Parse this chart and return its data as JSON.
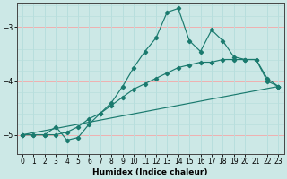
{
  "xlabel": "Humidex (Indice chaleur)",
  "bg_color": "#cce8e6",
  "grid_color_major": "#f0b0b0",
  "grid_color_minor": "#b8dedd",
  "line_color": "#1a7a6e",
  "xlim": [
    -0.5,
    23.5
  ],
  "ylim": [
    -5.35,
    -2.55
  ],
  "yticks": [
    -5,
    -4,
    -3
  ],
  "xticks": [
    0,
    1,
    2,
    3,
    4,
    5,
    6,
    7,
    8,
    9,
    10,
    11,
    12,
    13,
    14,
    15,
    16,
    17,
    18,
    19,
    20,
    21,
    22,
    23
  ],
  "line1_x": [
    0,
    1,
    2,
    3,
    4,
    5,
    6,
    7,
    8,
    9,
    10,
    11,
    12,
    13,
    14,
    15,
    16,
    17,
    18,
    19,
    20,
    21,
    22,
    23
  ],
  "line1_y": [
    -5.0,
    -5.0,
    -5.0,
    -4.85,
    -5.1,
    -5.05,
    -4.8,
    -4.6,
    -4.4,
    -4.1,
    -3.75,
    -3.45,
    -3.2,
    -2.72,
    -2.65,
    -3.25,
    -3.45,
    -3.05,
    -3.25,
    -3.55,
    -3.6,
    -3.6,
    -3.95,
    -4.1
  ],
  "line2_x": [
    0,
    1,
    2,
    3,
    4,
    5,
    6,
    7,
    8,
    9,
    10,
    11,
    12,
    13,
    14,
    15,
    16,
    17,
    18,
    19,
    20,
    21,
    22,
    23
  ],
  "line2_y": [
    -5.0,
    -5.0,
    -5.0,
    -5.0,
    -4.95,
    -4.85,
    -4.7,
    -4.6,
    -4.45,
    -4.3,
    -4.15,
    -4.05,
    -3.95,
    -3.85,
    -3.75,
    -3.7,
    -3.65,
    -3.65,
    -3.6,
    -3.6,
    -3.6,
    -3.6,
    -4.0,
    -4.1
  ],
  "line3_x": [
    0,
    23
  ],
  "line3_y": [
    -5.0,
    -4.1
  ]
}
